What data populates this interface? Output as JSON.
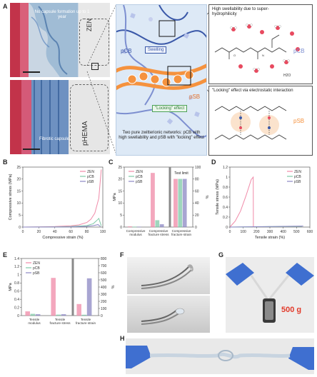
{
  "figure": {
    "panel_labels": [
      "A",
      "B",
      "C",
      "D",
      "E",
      "F",
      "G",
      "H"
    ],
    "panel_a": {
      "zen_caption": "No capsule formation up to 1 year",
      "zen_tag": "ZEN",
      "phema_tag": "pHEMA",
      "fibrotic_label": "Fibrotic capsule",
      "pcb_label": "pCB",
      "swelling_label": "Swelling",
      "psb_label": "pSB",
      "locking_label": "\"Locking\" effect",
      "network_caption": "Two pure zwitterionic networks: pCB with high swellability and pSB with \"locking\" effect",
      "box1_title": "High swellability due to super-hydrophilicity",
      "box1_tag": "pCB",
      "box1_water": "H2O",
      "box2_title": "\"Locking\" effect via electrostatic interaction",
      "box2_tag": "pSB"
    },
    "panel_f": {},
    "panel_g": {
      "weight_label": "500 g"
    },
    "panel_h": {},
    "colors": {
      "zen": "#f08aa8",
      "pcb": "#7fc9a7",
      "psb": "#8b87c4",
      "orange": "#f5923e",
      "blue": "#3a58a8"
    }
  },
  "chart_data": [
    {
      "id": "B",
      "type": "line",
      "xlabel": "Compressive strain (%)",
      "ylabel": "Compressive stress (MPa)",
      "xlim": [
        0,
        100
      ],
      "ylim": [
        0,
        25
      ],
      "xticks": [
        0,
        20,
        40,
        60,
        80,
        100
      ],
      "yticks": [
        0,
        5,
        10,
        15,
        20,
        25
      ],
      "legend": [
        "ZEN",
        "pCB",
        "pSB"
      ],
      "series": [
        {
          "name": "ZEN",
          "x": [
            0,
            20,
            40,
            60,
            70,
            80,
            85,
            90,
            95,
            98
          ],
          "y": [
            0,
            0.05,
            0.2,
            0.5,
            0.9,
            1.9,
            3.2,
            5.8,
            12,
            24
          ]
        },
        {
          "name": "pCB",
          "x": [
            0,
            40,
            60,
            80,
            88,
            92,
            95,
            98
          ],
          "y": [
            0,
            0.05,
            0.2,
            0.6,
            1.4,
            2.6,
            3.6,
            0.5
          ]
        },
        {
          "name": "pSB",
          "x": [
            0,
            40,
            60,
            80,
            88,
            94,
            97
          ],
          "y": [
            0,
            0.03,
            0.1,
            0.3,
            0.6,
            1.0,
            0.2
          ]
        }
      ]
    },
    {
      "id": "C",
      "type": "bar",
      "ylabel_left": "MPa",
      "ylabel_right": "%",
      "ylim_left": [
        0,
        25
      ],
      "yticks_left": [
        0,
        5,
        10,
        15,
        20,
        25
      ],
      "ylim_right": [
        0,
        100
      ],
      "yticks_right": [
        0,
        20,
        40,
        60,
        80,
        100
      ],
      "categories": [
        "Compressive modulus",
        "Compressive fracture stress",
        "Compressive fracture strain"
      ],
      "legend": [
        "ZEN",
        "pCB",
        "pSB"
      ],
      "annotation": "Test limit",
      "series": [
        {
          "name": "ZEN",
          "values": [
            0.2,
            22.5,
            80
          ]
        },
        {
          "name": "pCB",
          "values": [
            0.1,
            2.8,
            80
          ]
        },
        {
          "name": "pSB",
          "values": [
            0.1,
            1.1,
            80
          ]
        }
      ]
    },
    {
      "id": "D",
      "type": "line",
      "xlabel": "Tensile strain (%)",
      "ylabel": "Tensile stress (MPa)",
      "xlim": [
        0,
        600
      ],
      "ylim": [
        0,
        1.2
      ],
      "xticks": [
        0,
        100,
        200,
        300,
        400,
        500,
        600
      ],
      "yticks": [
        0.0,
        0.2,
        0.4,
        0.6,
        0.8,
        1.0,
        1.2
      ],
      "legend": [
        "ZEN",
        "pCB",
        "pSB"
      ],
      "series": [
        {
          "name": "ZEN",
          "x": [
            0,
            40,
            80,
            120,
            160,
            175,
            176,
            180
          ],
          "y": [
            0,
            0.12,
            0.32,
            0.62,
            0.95,
            1.0,
            0.0,
            0.0
          ]
        },
        {
          "name": "pCB",
          "x": [
            0,
            300,
            540
          ],
          "y": [
            0,
            0.008,
            0.015
          ]
        },
        {
          "name": "pSB",
          "x": [
            0,
            300,
            550
          ],
          "y": [
            0,
            0.01,
            0.02
          ]
        }
      ]
    },
    {
      "id": "E",
      "type": "bar",
      "ylabel_left": "MPa",
      "ylabel_right": "%",
      "ylim_left": [
        0,
        1.4
      ],
      "yticks_left": [
        0.0,
        0.2,
        0.4,
        0.6,
        0.8,
        1.0,
        1.2,
        1.4
      ],
      "ylim_right": [
        0,
        800
      ],
      "yticks_right": [
        0,
        100,
        200,
        300,
        400,
        500,
        600,
        700,
        800
      ],
      "categories": [
        "Tensile modulus",
        "Tensile fracture stress",
        "Tensile fracture strain"
      ],
      "legend": [
        "ZEN",
        "pCB",
        "pSB"
      ],
      "series": [
        {
          "name": "ZEN",
          "values": [
            0.1,
            0.92,
            160
          ]
        },
        {
          "name": "pCB",
          "values": [
            0.04,
            0.02,
            10
          ]
        },
        {
          "name": "pSB",
          "values": [
            0.03,
            0.03,
            520
          ]
        }
      ]
    }
  ]
}
